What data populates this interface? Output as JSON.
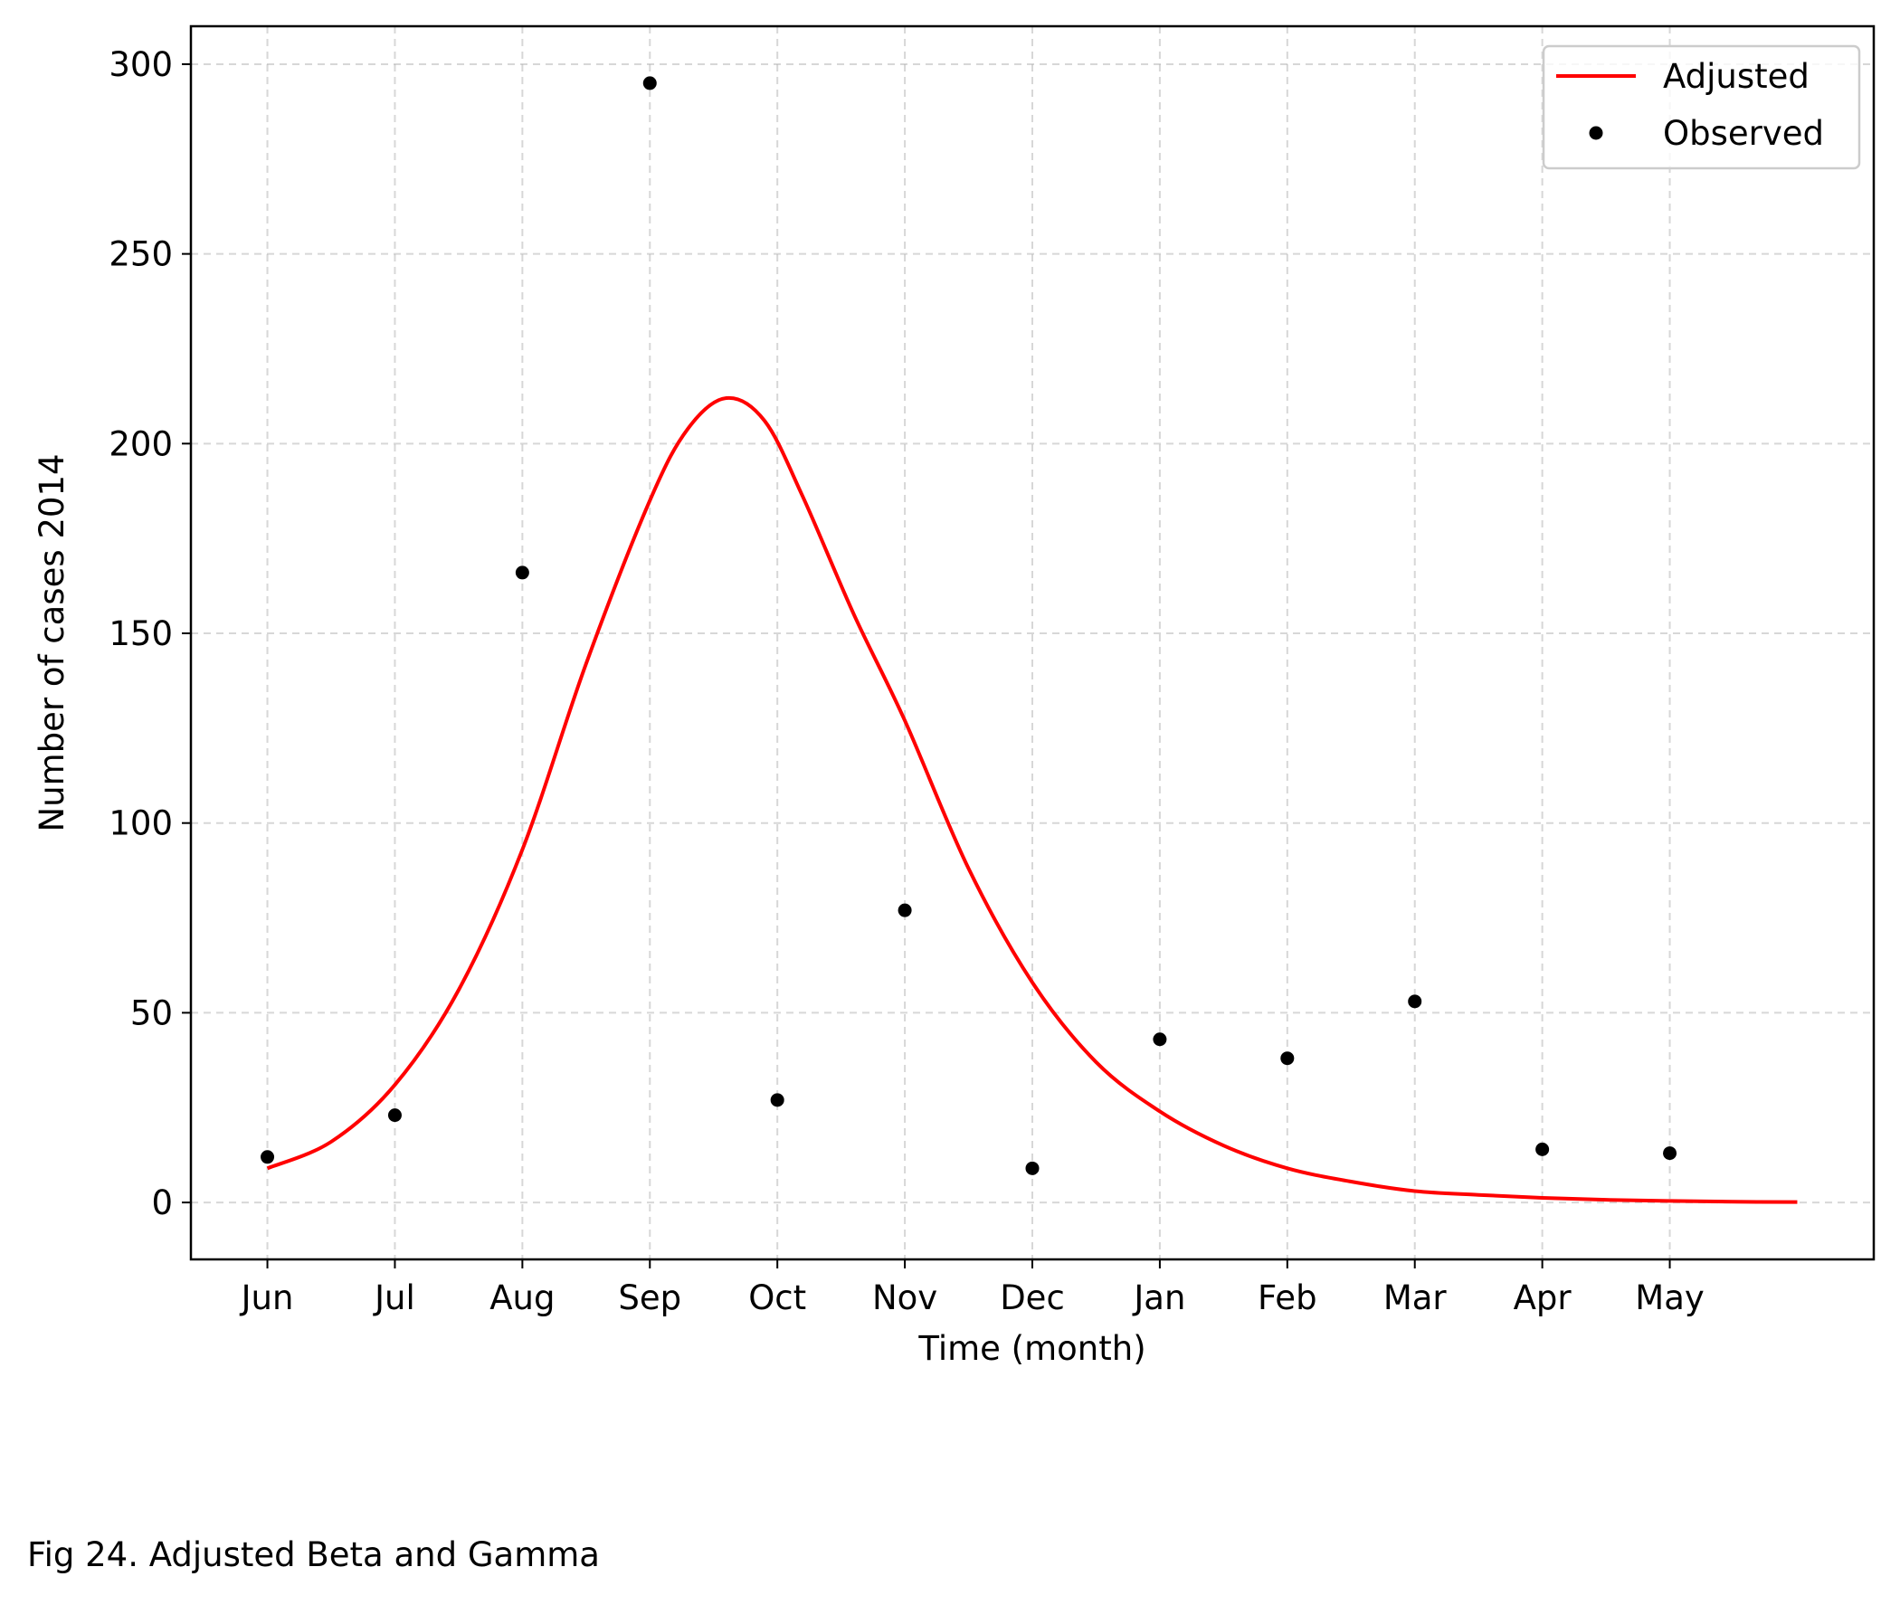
{
  "caption": "Fig 24. Adjusted Beta and Gamma",
  "chart_data": {
    "type": "line",
    "title": "",
    "xlabel": "Time (month)",
    "ylabel": "Number of cases 2014",
    "categories": [
      "Jun",
      "Jul",
      "Aug",
      "Sep",
      "Oct",
      "Nov",
      "Dec",
      "Jan",
      "Feb",
      "Mar",
      "Apr",
      "May"
    ],
    "xlim": [
      -0.6,
      12.6
    ],
    "ylim": [
      -15,
      310
    ],
    "yticks": [
      0,
      50,
      100,
      150,
      200,
      250,
      300
    ],
    "grid": true,
    "legend_position": "top-right",
    "series": [
      {
        "name": "Adjusted",
        "kind": "line",
        "color": "#ff0000",
        "x": [
          0,
          0.5,
          1,
          1.5,
          2,
          2.5,
          3,
          3.3,
          3.6,
          3.9,
          4.2,
          4.6,
          5,
          5.5,
          6,
          6.5,
          7,
          7.5,
          8,
          8.5,
          9,
          9.5,
          10,
          10.5,
          11,
          11.5,
          12
        ],
        "y": [
          9,
          16,
          31,
          56,
          93,
          142,
          185,
          204,
          212,
          206,
          186,
          155,
          127,
          88,
          58,
          37,
          24,
          15,
          9,
          5.5,
          3,
          2,
          1.2,
          0.7,
          0.4,
          0.2,
          0.1
        ]
      },
      {
        "name": "Observed",
        "kind": "scatter",
        "color": "#000000",
        "x": [
          0,
          1,
          2,
          3,
          4,
          5,
          6,
          7,
          8,
          9,
          10,
          11
        ],
        "y": [
          12,
          23,
          166,
          295,
          27,
          77,
          9,
          43,
          38,
          53,
          14,
          13
        ]
      }
    ]
  }
}
